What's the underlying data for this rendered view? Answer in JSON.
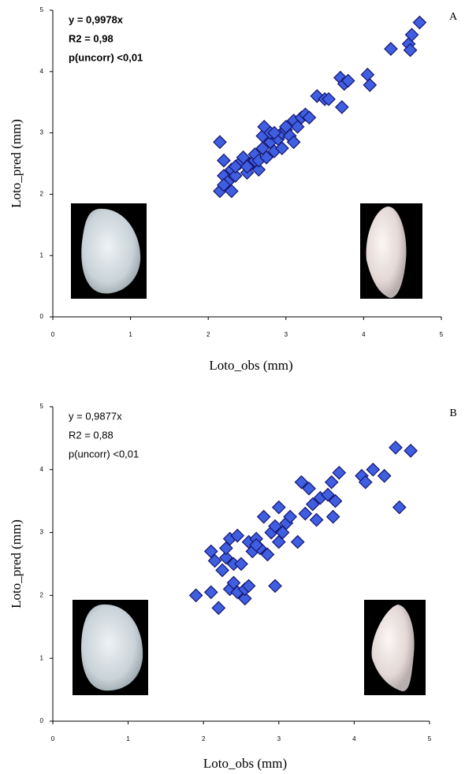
{
  "chart_data": [
    {
      "type": "scatter",
      "panel_label": "A",
      "x_label": "Loto_obs (mm)",
      "y_label": "Loto_pred (mm)",
      "annotations": [
        "y = 0,9978x",
        "R2 = 0,98",
        "p(uncorr) <0,01"
      ],
      "annotation_bold": true,
      "color": "#3f5fe0",
      "x": [
        2.15,
        2.15,
        2.2,
        2.2,
        2.25,
        2.3,
        2.3,
        2.35,
        2.4,
        2.45,
        2.5,
        2.55,
        2.6,
        2.6,
        2.65,
        2.65,
        2.7,
        2.7,
        2.72,
        2.75,
        2.8,
        2.8,
        2.85,
        2.9,
        2.95,
        2.95,
        3.0,
        3.05,
        3.1,
        3.1,
        3.15,
        3.2,
        3.25,
        3.3,
        3.4,
        3.5,
        3.55,
        3.7,
        3.72,
        3.75,
        3.8,
        4.05,
        4.08,
        4.35,
        4.58,
        4.6,
        4.62,
        4.72,
        2.2,
        2.35,
        2.5,
        2.85,
        3.0
      ],
      "values": [
        2.85,
        2.05,
        2.3,
        2.55,
        2.2,
        2.05,
        2.4,
        2.3,
        2.5,
        2.6,
        2.35,
        2.5,
        2.55,
        2.65,
        2.4,
        2.55,
        2.75,
        2.95,
        3.1,
        2.6,
        2.85,
        3.0,
        2.7,
        2.9,
        2.75,
        3.0,
        3.05,
        2.95,
        2.85,
        3.2,
        3.1,
        3.25,
        3.3,
        3.25,
        3.6,
        3.55,
        3.55,
        3.9,
        3.42,
        3.8,
        3.85,
        3.95,
        3.78,
        4.37,
        4.45,
        4.35,
        4.6,
        4.8,
        2.15,
        2.45,
        2.45,
        3.0,
        3.1
      ],
      "xlim": [
        0,
        5
      ],
      "ylim": [
        0,
        5
      ],
      "xticks": [
        0,
        1,
        2,
        3,
        4,
        5
      ],
      "yticks": [
        0,
        1,
        2,
        3,
        4,
        5
      ]
    },
    {
      "type": "scatter",
      "panel_label": "B",
      "x_label": "Loto_obs (mm)",
      "y_label": "Loto_pred (mm)",
      "annotations": [
        "y = 0,9877x",
        "R2 = 0,88",
        "p(uncorr) <0,01"
      ],
      "annotation_bold": false,
      "color": "#3f5fe0",
      "x": [
        1.9,
        2.1,
        2.1,
        2.15,
        2.2,
        2.25,
        2.3,
        2.35,
        2.35,
        2.4,
        2.4,
        2.45,
        2.45,
        2.5,
        2.55,
        2.55,
        2.6,
        2.6,
        2.65,
        2.7,
        2.75,
        2.8,
        2.85,
        2.9,
        2.95,
        2.95,
        3.0,
        3.0,
        3.05,
        3.1,
        3.15,
        3.25,
        3.3,
        3.4,
        3.45,
        3.5,
        3.55,
        3.65,
        3.7,
        3.72,
        3.75,
        3.8,
        4.1,
        4.15,
        4.25,
        4.4,
        4.55,
        4.6,
        4.75,
        2.3,
        2.7,
        3.35
      ],
      "values": [
        2.0,
        2.7,
        2.05,
        2.55,
        1.8,
        2.4,
        2.6,
        2.9,
        2.1,
        2.5,
        2.2,
        2.95,
        2.05,
        2.5,
        1.95,
        2.1,
        2.85,
        2.15,
        2.7,
        2.9,
        2.75,
        3.25,
        2.65,
        3.0,
        2.15,
        3.1,
        2.85,
        3.4,
        3.0,
        3.15,
        3.25,
        2.85,
        3.8,
        3.7,
        3.45,
        3.2,
        3.55,
        3.6,
        3.8,
        3.25,
        3.5,
        3.95,
        3.9,
        3.8,
        4.0,
        3.9,
        4.35,
        3.4,
        4.3,
        2.75,
        2.8,
        3.3
      ],
      "xlim": [
        0,
        5
      ],
      "ylim": [
        0,
        5
      ],
      "xticks": [
        0,
        1,
        2,
        3,
        4,
        5
      ],
      "yticks": [
        0,
        1,
        2,
        3,
        4,
        5
      ]
    }
  ]
}
